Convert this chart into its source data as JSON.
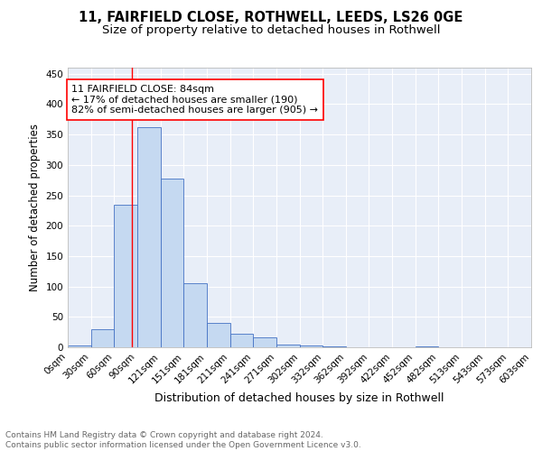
{
  "title1": "11, FAIRFIELD CLOSE, ROTHWELL, LEEDS, LS26 0GE",
  "title2": "Size of property relative to detached houses in Rothwell",
  "xlabel": "Distribution of detached houses by size in Rothwell",
  "ylabel": "Number of detached properties",
  "bin_edges": [
    0,
    30,
    60,
    90,
    121,
    151,
    181,
    211,
    241,
    271,
    302,
    332,
    362,
    392,
    422,
    452,
    482,
    513,
    543,
    573,
    603
  ],
  "bin_labels": [
    "0sqm",
    "30sqm",
    "60sqm",
    "90sqm",
    "121sqm",
    "151sqm",
    "181sqm",
    "211sqm",
    "241sqm",
    "271sqm",
    "302sqm",
    "332sqm",
    "362sqm",
    "392sqm",
    "422sqm",
    "452sqm",
    "482sqm",
    "513sqm",
    "543sqm",
    "573sqm",
    "603sqm"
  ],
  "counts": [
    3,
    30,
    235,
    362,
    278,
    105,
    40,
    22,
    16,
    5,
    3,
    1,
    0,
    0,
    0,
    1,
    0,
    0,
    0,
    0
  ],
  "bar_color": "#c5d9f1",
  "bar_edge_color": "#4472c4",
  "property_line_x": 84,
  "property_line_color": "red",
  "annotation_text": "11 FAIRFIELD CLOSE: 84sqm\n← 17% of detached houses are smaller (190)\n82% of semi-detached houses are larger (905) →",
  "annotation_box_color": "white",
  "annotation_box_edge": "red",
  "ylim": [
    0,
    460
  ],
  "yticks": [
    0,
    50,
    100,
    150,
    200,
    250,
    300,
    350,
    400,
    450
  ],
  "background_color": "#e8eef8",
  "footer_text": "Contains HM Land Registry data © Crown copyright and database right 2024.\nContains public sector information licensed under the Open Government Licence v3.0.",
  "title1_fontsize": 10.5,
  "title2_fontsize": 9.5,
  "xlabel_fontsize": 9,
  "ylabel_fontsize": 8.5,
  "tick_fontsize": 7.5,
  "footer_fontsize": 6.5,
  "annot_fontsize": 8
}
